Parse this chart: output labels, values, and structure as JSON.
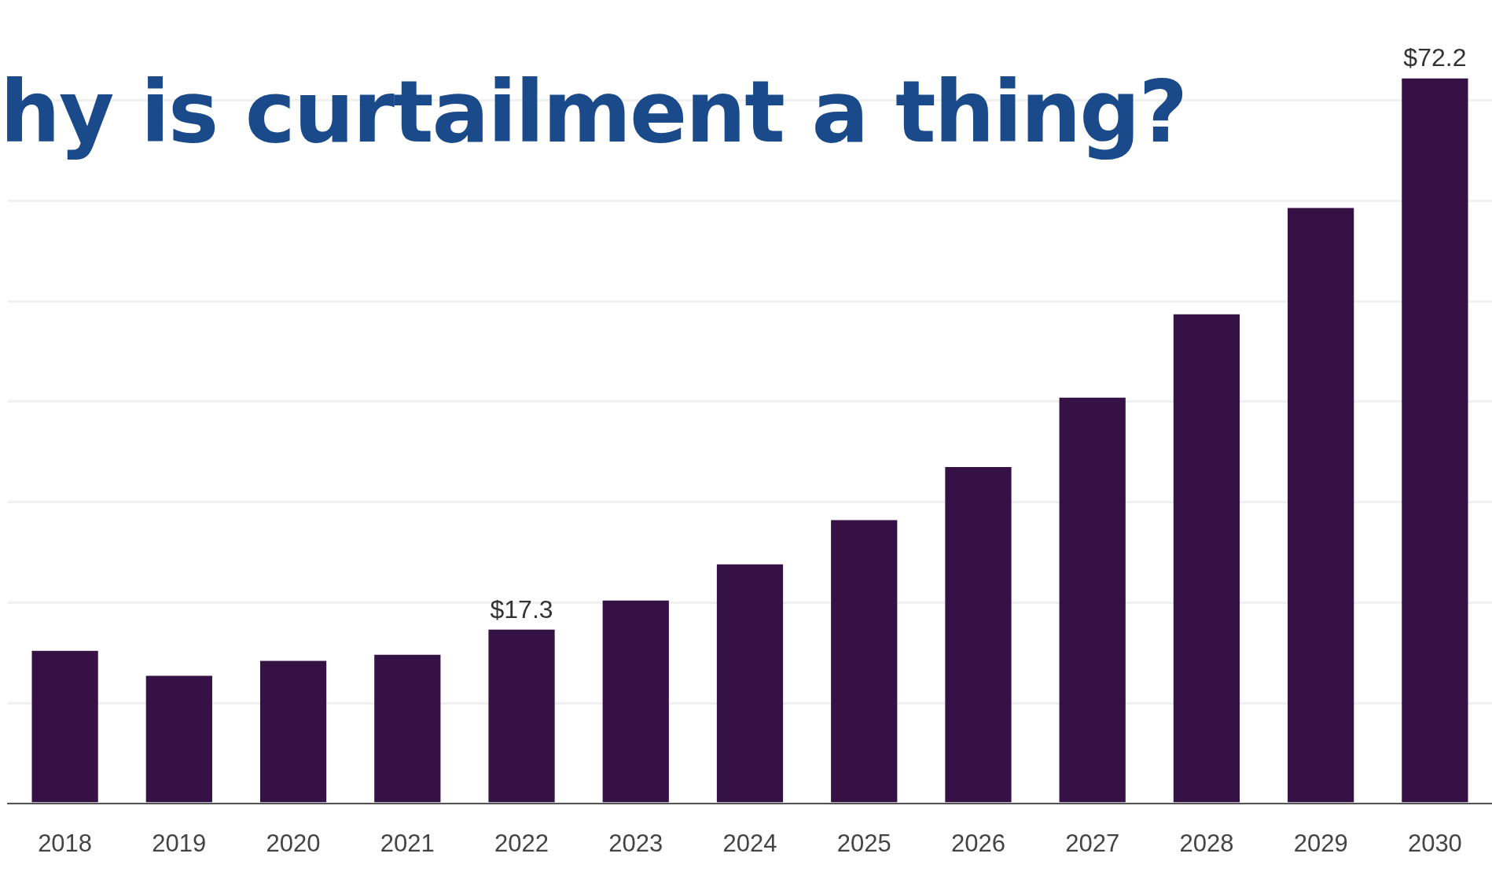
{
  "chart_data": {
    "type": "bar",
    "title": "hy is curtailment a thing?",
    "categories": [
      "2018",
      "2019",
      "2020",
      "2021",
      "2022",
      "2023",
      "2024",
      "2025",
      "2026",
      "2027",
      "2028",
      "2029",
      "2030"
    ],
    "values": [
      15.2,
      12.7,
      14.2,
      14.8,
      17.3,
      20.2,
      23.8,
      28.2,
      33.5,
      40.4,
      48.7,
      59.3,
      72.2
    ],
    "value_labels": [
      null,
      null,
      null,
      null,
      "$17.3",
      null,
      null,
      null,
      null,
      null,
      null,
      null,
      "$72.2"
    ],
    "color": "#361146",
    "yticks": [
      {
        "value": 0,
        "label": null
      },
      {
        "value": 10,
        "label": null
      },
      {
        "value": 20,
        "label": null
      },
      {
        "value": 30,
        "label": null
      },
      {
        "value": 40,
        "label": null
      },
      {
        "value": 50,
        "label": null
      },
      {
        "value": 60,
        "label": null
      },
      {
        "value": 70,
        "label": null
      }
    ],
    "grid": "y",
    "tick_labels": "x"
  }
}
